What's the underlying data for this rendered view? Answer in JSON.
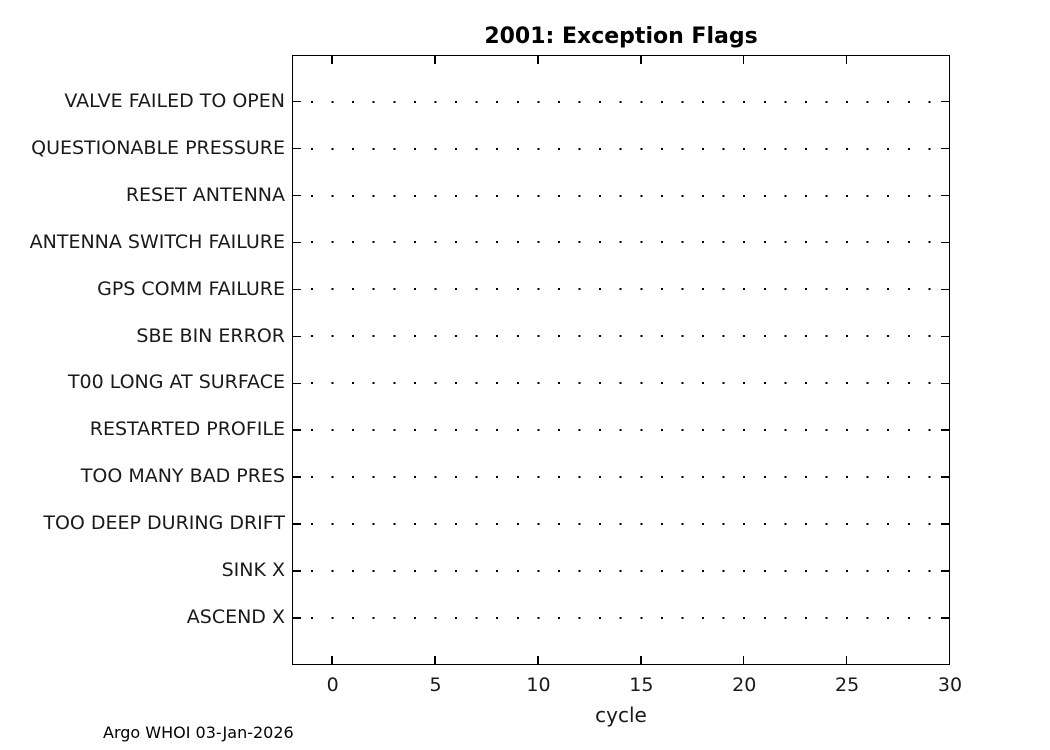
{
  "title": "2001: Exception Flags",
  "footer": "Argo WHOI 03-Jan-2026",
  "chart_data": {
    "type": "scatter",
    "title": "2001: Exception Flags",
    "xlabel": "cycle",
    "ylabel": "",
    "xlim": [
      -2,
      30
    ],
    "x_ticks": [
      0,
      5,
      10,
      15,
      20,
      25,
      30
    ],
    "categories": [
      "VALVE FAILED TO OPEN",
      "QUESTIONABLE PRESSURE",
      "RESET ANTENNA",
      "ANTENNA SWITCH FAILURE",
      "GPS COMM FAILURE",
      "SBE BIN ERROR",
      "T00 LONG AT SURFACE",
      "RESTARTED PROFILE",
      "TOO MANY BAD PRES",
      "TOO DEEP DURING DRIFT",
      "SINK X",
      "ASCEND X"
    ],
    "series": [],
    "grid": "dotted horizontal baseline per category, dots at integer cycle positions",
    "legend": "none",
    "tick_direction": "in",
    "box": true,
    "footer": "Argo WHOI 03-Jan-2026",
    "colors": {
      "background": "#ffffff",
      "axis": "#000000",
      "text": "#1a1a1a",
      "grid_dots": "#000000"
    }
  }
}
